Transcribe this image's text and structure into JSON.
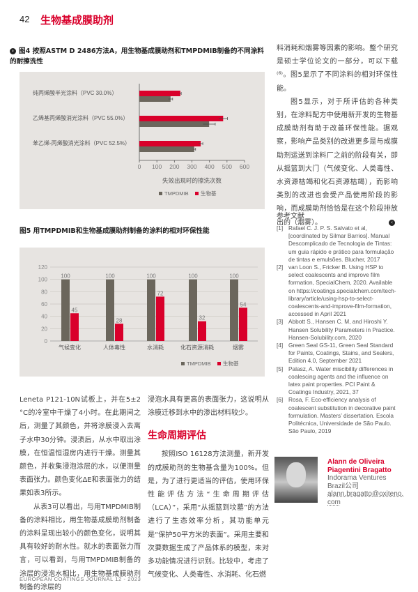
{
  "header": {
    "page_number": "42",
    "section_title": "生物基成膜助剂"
  },
  "colors": {
    "accent": "#d9002b",
    "tmpdmib": "#6b665c",
    "bio": "#d9002b",
    "chart_bg": "#e7e4e1"
  },
  "fig4": {
    "caption": "图4 按照ASTM D 2486方法A，用生物基成膜助剂和TMPDMIB制备的不同涂料的耐擦洗性",
    "icon": "arrow-right-circle-icon"
  },
  "fig5": {
    "caption": "图5 用TMPDMIB和生物基成膜助剂制备的涂料的相对环保性能"
  },
  "chart_data": [
    {
      "type": "bar",
      "orientation": "horizontal",
      "categories": [
        "纯丙烯酸半光涂料（PVC 30.0%）",
        "乙烯基丙烯酸消光涂料（PVC 55.0%）",
        "苯乙烯-丙烯酸消光涂料（PVC 52.5%）"
      ],
      "series": [
        {
          "name": "TMPDMIB",
          "values": [
            178,
            398,
            313
          ],
          "errors": [
            12,
            35,
            8
          ]
        },
        {
          "name": "生物基",
          "values": [
            234,
            478,
            350
          ],
          "errors": [
            5,
            25,
            12
          ]
        }
      ],
      "xlabel": "失效出现时的擦洗次数",
      "xlim": [
        0,
        600
      ],
      "xticks": [
        "0",
        "100",
        "200",
        "300",
        "400",
        "500",
        "600"
      ],
      "legend": "bottom",
      "grid": false
    },
    {
      "type": "bar",
      "orientation": "vertical",
      "categories": [
        "气候变化",
        "人体毒性",
        "水消耗",
        "化石资源消耗",
        "烟雾"
      ],
      "series": [
        {
          "name": "TMPDMIB",
          "values": [
            100,
            100,
            100,
            100,
            100
          ]
        },
        {
          "name": "生物基",
          "values": [
            45,
            28,
            72,
            32,
            54
          ]
        }
      ],
      "ylim": [
        0,
        120
      ],
      "yticks": [
        "0",
        "20",
        "40",
        "60",
        "80",
        "100",
        "120"
      ],
      "legend": "bottom-right",
      "grid": true
    }
  ],
  "col1": {
    "paragraphs": [
      "Leneta P121-10N试板上，并在5±2 °C的冷室中干燥了4小时。在此期间之后，测量了其颜色，并将涂膜浸入去离子水中30分钟。浸渍后，从水中取出涂膜，在恒温恒湿房内进行干燥。测量其颜色，并收集浸泡涂层的水，以便测量表面张力。颜色变化ΔE和表面张力的结果如表3所示。",
      "从表3可以看出，与用TMPDMIB制备的涂料相比，用生物基成膜助剂制备的涂料呈现出较小的颜色变化，说明其具有较好的耐水性。就水的表面张力而言，可以看到，与用TMPDMIB制备的涂层的浸泡水相比，用生物基成膜助剂制备的涂层的"
    ]
  },
  "col2": {
    "para_top": "浸泡水具有更高的表面张力，这说明从涂膜迁移到水中的渗出材料较少。",
    "heading": "生命周期评估",
    "para": "按照ISO 16128方法测量，新开发的成膜助剂的生物基含量为100%。但是，为了进行更适当的评估，使用环保性能评估方法“生命周期评估（LCA）”，采用“从摇篮到坟墓”的方法进行了生态效率分析，其功能单元是“保护50平方米的表面”。采用主要和次要数据生成了产品体系的模型，未对多功能情况进行识别。比较中，考虑了气候变化、人类毒性、水消耗、化石燃"
  },
  "col3": {
    "paragraphs": [
      "料消耗和烟雾等因素的影响。整个研究是硕士学位论文的一部分，可以下载⁽⁶⁾。图5显示了不同涂料的相对环保性能。",
      "图5显示，对于所评估的各种类别，在涂料配方中使用新开发的生物基成膜助剂有助于改善环保性能。据观察，影响产品类别的改进更多是与成膜助剂运送到涂料厂之前的阶段有关，即从摇篮到大门（气候变化、人类毒性、水资源枯竭和化石资源枯竭），而影响类别的改进也会受产品使用阶段的影响，而成膜助剂恰恰是在这个阶段排放出的（烟雾）。"
    ],
    "end_icon": "arrow-left-circle-icon"
  },
  "references": {
    "heading": "参考文献",
    "items": [
      {
        "n": "[1]",
        "text": "Rafael C. J. P. S. Salvato et al, [coordinated by Silmar Barrios]. Manual Descomplicado de Tecnologia de Tintas: um guia rápido e prático para formulação de tintas e emulsões. Blucher, 2017"
      },
      {
        "n": "[2]",
        "text": "van Loon S., Fricker B. Using HSP to select coalescents and improve film formation, SpecialChem, 2020. Available on https://coatings.specialchem.com/tech-library/article/using-hsp-to-select-coalescents-and-improve-film-formation, accessed in April 2021"
      },
      {
        "n": "[3]",
        "text": "Abbott S., Hansen C. M, and Hiroshi Y. Hansen Solubility Parameters in Practice. Hansen-Solubility.com, 2020"
      },
      {
        "n": "[4]",
        "text": "Green Seal GS-11, Green Seal Standard for Paints, Coatings, Stains, and Sealers, Edition 4.0, September 2021"
      },
      {
        "n": "[5]",
        "text": "Palasz, A. Water miscibility differences in coalescing agents and the influence on latex paint properties. PCI Paint & Coatings Industry, 2021, 37"
      },
      {
        "n": "[6]",
        "text": "Rosa, F. Eco-efficiency analysis of coalescent substitution in decorative paint formulation. Masters’ dissertation. Escola Politécnica, Universidade de São Paulo. São Paulo, 2019"
      }
    ]
  },
  "author": {
    "name": "Alann de Oliveira Piagentini Bragatto",
    "company": "Indorama Ventures Brazil公司",
    "email": "alann.bragatto@oxiteno.com"
  },
  "footer": {
    "journal": "EUROPEAN COATINGS JOURNAL 12 - 2023"
  }
}
